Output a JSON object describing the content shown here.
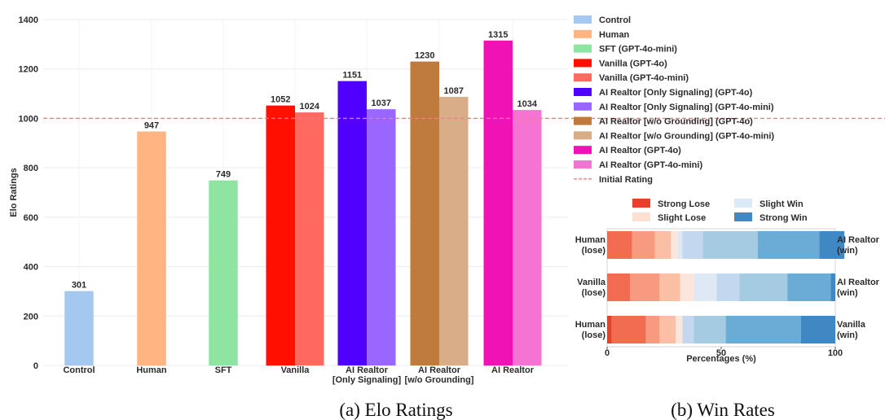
{
  "chart_data": [
    {
      "type": "bar",
      "title": "",
      "caption": "(a) Elo Ratings",
      "xlabel": "",
      "ylabel": "Elo Ratings",
      "ylim": [
        0,
        1400
      ],
      "yticks": [
        0,
        200,
        400,
        600,
        800,
        1000,
        1200,
        1400
      ],
      "grid": true,
      "categories": [
        "Control",
        "Human",
        "SFT",
        "Vanilla",
        "AI Realtor\n[Only Signaling]",
        "AI Realtor\n[w/o Grounding]",
        "AI Realtor"
      ],
      "bars": [
        {
          "series": "Control",
          "category_index": 0,
          "slot": "center",
          "value": 301,
          "color": "#a4c8f0"
        },
        {
          "series": "Human",
          "category_index": 1,
          "slot": "center",
          "value": 947,
          "color": "#ffb482"
        },
        {
          "series": "SFT (GPT-4o-mini)",
          "category_index": 2,
          "slot": "center",
          "value": 749,
          "color": "#8de5a1"
        },
        {
          "series": "Vanilla (GPT-4o)",
          "category_index": 3,
          "slot": "left",
          "value": 1052,
          "color": "#ff1000"
        },
        {
          "series": "Vanilla (GPT-4o-mini)",
          "category_index": 3,
          "slot": "right",
          "value": 1024,
          "color": "#ff6960"
        },
        {
          "series": "AI Realtor [Only Signaling] (GPT-4o)",
          "category_index": 4,
          "slot": "left",
          "value": 1151,
          "color": "#5000ff"
        },
        {
          "series": "AI Realtor [Only Signaling] (GPT-4o-mini)",
          "category_index": 4,
          "slot": "right",
          "value": 1037,
          "color": "#9966ff"
        },
        {
          "series": "AI Realtor [w/o Grounding] (GPT-4o)",
          "category_index": 5,
          "slot": "left",
          "value": 1230,
          "color": "#bf7a3d"
        },
        {
          "series": "AI Realtor [w/o Grounding] (GPT-4o-mini)",
          "category_index": 5,
          "slot": "right",
          "value": 1087,
          "color": "#d9ad87"
        },
        {
          "series": "AI Realtor (GPT-4o)",
          "category_index": 6,
          "slot": "left",
          "value": 1315,
          "color": "#f012b4"
        },
        {
          "series": "AI Realtor (GPT-4o-mini)",
          "category_index": 6,
          "slot": "right",
          "value": 1034,
          "color": "#f573d2"
        }
      ],
      "reference_line": {
        "value": 1000,
        "label": "Initial Rating",
        "color": "#f08080"
      },
      "legend": {
        "placement": "top-right",
        "entries": [
          {
            "label": "Control",
            "color": "#a4c8f0"
          },
          {
            "label": "Human",
            "color": "#ffb482"
          },
          {
            "label": "SFT (GPT-4o-mini)",
            "color": "#8de5a1"
          },
          {
            "label": "Vanilla (GPT-4o)",
            "color": "#ff1000"
          },
          {
            "label": "Vanilla (GPT-4o-mini)",
            "color": "#ff6960"
          },
          {
            "label": "AI Realtor [Only Signaling] (GPT-4o)",
            "color": "#5000ff"
          },
          {
            "label": "AI Realtor [Only Signaling] (GPT-4o-mini)",
            "color": "#9966ff"
          },
          {
            "label": "AI Realtor [w/o Grounding] (GPT-4o)",
            "color": "#bf7a3d"
          },
          {
            "label": "AI Realtor [w/o Grounding] (GPT-4o-mini)",
            "color": "#d9ad87"
          },
          {
            "label": "AI Realtor (GPT-4o)",
            "color": "#f012b4"
          },
          {
            "label": "AI Realtor (GPT-4o-mini)",
            "color": "#f573d2"
          },
          {
            "label": "Initial Rating",
            "color": "#f08080",
            "style": "dashed"
          }
        ]
      }
    },
    {
      "type": "stacked_bar_horizontal",
      "title": "",
      "caption": "(b) Win Rates",
      "xlabel": "Percentages (%)",
      "ylabel": "",
      "xlim": [
        0,
        100
      ],
      "xticks": [
        0,
        50,
        100
      ],
      "legend": {
        "placement": "top",
        "entries": [
          {
            "label": "Strong Lose",
            "color": "#e8402c"
          },
          {
            "label": "Slight Lose",
            "color": "#fde0d0"
          },
          {
            "label": "Slight Win",
            "color": "#dce9f7"
          },
          {
            "label": "Strong Win",
            "color": "#3f8ac4"
          }
        ]
      },
      "rows": [
        {
          "left_label": "Human\n(lose)",
          "right_label": "AI Realtor\n(win)",
          "segments": [
            {
              "value": 11,
              "color": "#f26c52"
            },
            {
              "value": 10,
              "color": "#f89a7f"
            },
            {
              "value": 7,
              "color": "#fbbfa5"
            },
            {
              "value": 3,
              "color": "#fce5db"
            },
            {
              "value": 2,
              "color": "#dfe9f6"
            },
            {
              "value": 9,
              "color": "#c3d8ef"
            },
            {
              "value": 24,
              "color": "#a5cbe2"
            },
            {
              "value": 27,
              "color": "#6aacd6"
            },
            {
              "value": 11,
              "color": "#3f88c4"
            }
          ]
        },
        {
          "left_label": "Vanilla\n(lose)",
          "right_label": "AI Realtor\n(win)",
          "segments": [
            {
              "value": 10,
              "color": "#f26c52"
            },
            {
              "value": 13,
              "color": "#f89a7f"
            },
            {
              "value": 9,
              "color": "#fbbfa5"
            },
            {
              "value": 6,
              "color": "#fce5db"
            },
            {
              "value": 10,
              "color": "#dfe9f6"
            },
            {
              "value": 10,
              "color": "#c3d8ef"
            },
            {
              "value": 21,
              "color": "#a5cbe2"
            },
            {
              "value": 19,
              "color": "#6aacd6"
            },
            {
              "value": 2,
              "color": "#3f88c4"
            }
          ]
        },
        {
          "left_label": "Human\n(lose)",
          "right_label": "Vanilla\n(win)",
          "segments": [
            {
              "value": 2,
              "color": "#e8402c"
            },
            {
              "value": 15,
              "color": "#f26c52"
            },
            {
              "value": 6,
              "color": "#f89a7f"
            },
            {
              "value": 7,
              "color": "#fbbfa5"
            },
            {
              "value": 3,
              "color": "#fce5db"
            },
            {
              "value": 5,
              "color": "#c3d8ef"
            },
            {
              "value": 14,
              "color": "#a5cbe2"
            },
            {
              "value": 33,
              "color": "#6aacd6"
            },
            {
              "value": 15,
              "color": "#3f88c4"
            }
          ]
        }
      ]
    }
  ]
}
